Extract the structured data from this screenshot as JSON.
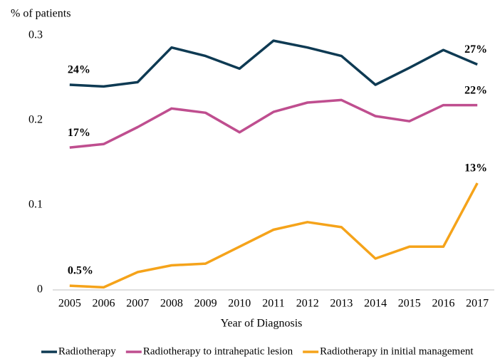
{
  "chart_data": {
    "type": "line",
    "y_axis_label": "% of patients",
    "x_axis_label": "Year of Diagnosis",
    "categories": [
      "2005",
      "2006",
      "2007",
      "2008",
      "2009",
      "2010",
      "2011",
      "2012",
      "2013",
      "2014",
      "2015",
      "2016",
      "2017"
    ],
    "ylim": [
      0,
      0.3
    ],
    "yticks": [
      0,
      0.1,
      0.2,
      0.3
    ],
    "grid": false,
    "legend": "bottom",
    "series": [
      {
        "name": "Radiotherapy",
        "color": "#0e3a53",
        "values": [
          0.242,
          0.24,
          0.245,
          0.286,
          0.276,
          0.261,
          0.294,
          0.286,
          0.276,
          0.242,
          0.262,
          0.283,
          0.266
        ],
        "value_labels": [
          "24%",
          null,
          null,
          null,
          null,
          null,
          null,
          null,
          null,
          null,
          null,
          null,
          "27%"
        ]
      },
      {
        "name": "Radiotherapy to intrahepatic lesion",
        "color": "#bf4e8f",
        "values": [
          0.168,
          0.172,
          0.192,
          0.214,
          0.209,
          0.186,
          0.21,
          0.221,
          0.224,
          0.205,
          0.199,
          0.218,
          0.218
        ],
        "value_labels": [
          "17%",
          null,
          null,
          null,
          null,
          null,
          null,
          null,
          null,
          null,
          null,
          null,
          "22%"
        ]
      },
      {
        "name": "Radiotherapy in initial management",
        "color": "#f5a31a",
        "values": [
          0.005,
          0.003,
          0.021,
          0.029,
          0.031,
          0.051,
          0.071,
          0.08,
          0.074,
          0.037,
          0.051,
          0.051,
          0.126
        ],
        "value_labels": [
          "0.5%",
          null,
          null,
          null,
          null,
          null,
          null,
          null,
          null,
          null,
          null,
          null,
          "13%"
        ]
      }
    ]
  }
}
